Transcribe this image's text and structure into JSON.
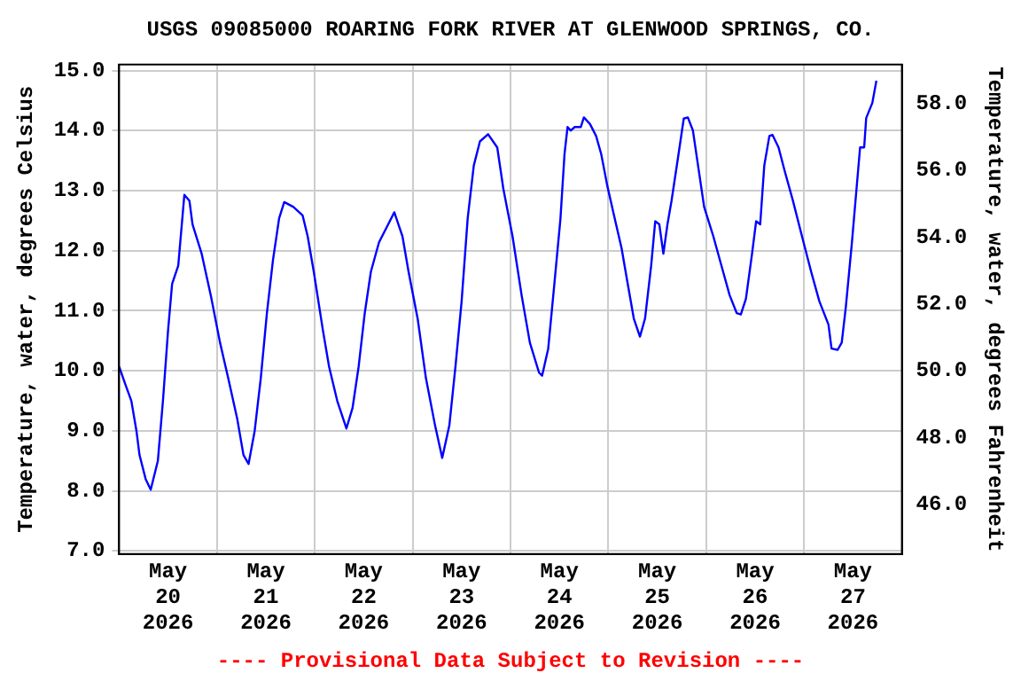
{
  "chart_data": {
    "type": "line",
    "title": "USGS 09085000 ROARING FORK RIVER AT GLENWOOD SPRINGS, CO.",
    "ylabel": "Temperature, water, degrees Celsius",
    "y2label": "Temperature, water, degrees Fahrenheit",
    "annotations": [
      "---- Provisional Data Subject to Revision ----"
    ],
    "x": [
      "2026-05-20T00:00",
      "2026-05-20T01:30",
      "2026-05-20T03:00",
      "2026-05-20T04:15",
      "2026-05-20T05:00",
      "2026-05-20T06:30",
      "2026-05-20T07:45",
      "2026-05-20T09:30",
      "2026-05-20T10:45",
      "2026-05-20T12:00",
      "2026-05-20T13:00",
      "2026-05-20T14:30",
      "2026-05-20T16:00",
      "2026-05-20T17:15",
      "2026-05-20T18:00",
      "2026-05-20T20:15",
      "2026-05-20T22:30",
      "2026-05-21T00:45",
      "2026-05-21T02:45",
      "2026-05-21T05:00",
      "2026-05-21T06:30",
      "2026-05-21T07:45",
      "2026-05-21T09:15",
      "2026-05-21T10:45",
      "2026-05-21T12:15",
      "2026-05-21T13:45",
      "2026-05-21T15:15",
      "2026-05-21T16:30",
      "2026-05-21T18:45",
      "2026-05-21T21:00",
      "2026-05-21T22:15",
      "2026-05-21T23:45",
      "2026-05-22T02:00",
      "2026-05-22T03:30",
      "2026-05-22T05:30",
      "2026-05-22T07:45",
      "2026-05-22T09:15",
      "2026-05-22T10:45",
      "2026-05-22T12:15",
      "2026-05-22T13:45",
      "2026-05-22T15:45",
      "2026-05-22T18:00",
      "2026-05-22T19:30",
      "2026-05-22T21:30",
      "2026-05-22T23:00",
      "2026-05-23T01:15",
      "2026-05-23T03:15",
      "2026-05-23T05:30",
      "2026-05-23T07:15",
      "2026-05-23T09:00",
      "2026-05-23T10:30",
      "2026-05-23T12:00",
      "2026-05-23T13:30",
      "2026-05-23T15:00",
      "2026-05-23T16:30",
      "2026-05-23T18:30",
      "2026-05-23T20:45",
      "2026-05-23T22:15",
      "2026-05-24T00:30",
      "2026-05-24T02:45",
      "2026-05-24T04:45",
      "2026-05-24T07:00",
      "2026-05-24T07:45",
      "2026-05-24T09:15",
      "2026-05-24T10:45",
      "2026-05-24T12:15",
      "2026-05-24T13:15",
      "2026-05-24T14:00",
      "2026-05-24T14:45",
      "2026-05-24T15:45",
      "2026-05-24T17:15",
      "2026-05-24T18:00",
      "2026-05-24T19:30",
      "2026-05-24T21:00",
      "2026-05-24T22:15",
      "2026-05-24T23:45",
      "2026-05-25T01:15",
      "2026-05-25T03:15",
      "2026-05-25T04:45",
      "2026-05-25T06:15",
      "2026-05-25T07:45",
      "2026-05-25T09:00",
      "2026-05-25T10:30",
      "2026-05-25T11:30",
      "2026-05-25T12:30",
      "2026-05-25T13:30",
      "2026-05-25T14:30",
      "2026-05-25T15:30",
      "2026-05-25T17:00",
      "2026-05-25T18:30",
      "2026-05-25T19:30",
      "2026-05-25T20:45",
      "2026-05-25T22:00",
      "2026-05-25T23:30",
      "2026-05-26T01:45",
      "2026-05-26T03:45",
      "2026-05-26T05:45",
      "2026-05-26T07:30",
      "2026-05-26T08:30",
      "2026-05-26T09:45",
      "2026-05-26T11:15",
      "2026-05-26T12:15",
      "2026-05-26T13:15",
      "2026-05-26T14:15",
      "2026-05-26T15:30",
      "2026-05-26T16:15",
      "2026-05-26T17:45",
      "2026-05-26T19:15",
      "2026-05-26T21:15",
      "2026-05-26T23:30",
      "2026-05-27T01:45",
      "2026-05-27T03:45",
      "2026-05-27T06:00",
      "2026-05-27T06:45",
      "2026-05-27T08:15",
      "2026-05-27T09:15",
      "2026-05-27T10:15",
      "2026-05-27T11:45",
      "2026-05-27T13:00",
      "2026-05-27T13:45",
      "2026-05-27T14:45",
      "2026-05-27T15:15",
      "2026-05-27T16:45",
      "2026-05-27T17:45"
    ],
    "series": [
      {
        "color": "#0000ff",
        "values": [
          10.07,
          9.78,
          9.5,
          9.0,
          8.6,
          8.2,
          8.02,
          8.5,
          9.5,
          10.67,
          11.45,
          11.75,
          12.93,
          12.83,
          12.44,
          11.95,
          11.25,
          10.47,
          9.88,
          9.19,
          8.6,
          8.45,
          9.0,
          9.88,
          10.96,
          11.85,
          12.54,
          12.81,
          12.73,
          12.59,
          12.24,
          11.65,
          10.67,
          10.07,
          9.5,
          9.04,
          9.38,
          10.07,
          10.96,
          11.65,
          12.14,
          12.44,
          12.64,
          12.24,
          11.65,
          10.86,
          9.88,
          9.09,
          8.55,
          9.09,
          10.07,
          11.15,
          12.54,
          13.42,
          13.82,
          13.94,
          13.72,
          13.03,
          12.24,
          11.25,
          10.47,
          9.97,
          9.92,
          10.37,
          11.44,
          12.53,
          13.61,
          14.06,
          14.0,
          14.06,
          14.06,
          14.22,
          14.11,
          13.91,
          13.61,
          13.08,
          12.63,
          12.04,
          11.45,
          10.87,
          10.57,
          10.87,
          11.75,
          12.49,
          12.44,
          11.95,
          12.44,
          12.83,
          13.51,
          14.2,
          14.22,
          14.0,
          13.42,
          12.73,
          12.24,
          11.75,
          11.26,
          10.96,
          10.94,
          11.2,
          11.95,
          12.49,
          12.44,
          13.42,
          13.91,
          13.93,
          13.72,
          13.33,
          12.84,
          12.24,
          11.65,
          11.16,
          10.77,
          10.37,
          10.35,
          10.47,
          11.06,
          12.14,
          13.13,
          13.72,
          13.72,
          14.21,
          14.46,
          14.83
        ]
      }
    ],
    "xlim": [
      "2026-05-20T00:00",
      "2026-05-28T00:00"
    ],
    "xticks": [
      {
        "value": "2026-05-20T12:00",
        "label": "May 20 2026"
      },
      {
        "value": "2026-05-21T00:00",
        "label": null
      },
      {
        "value": "2026-05-21T12:00",
        "label": "May 21 2026"
      },
      {
        "value": "2026-05-22T00:00",
        "label": null
      },
      {
        "value": "2026-05-22T12:00",
        "label": "May 22 2026"
      },
      {
        "value": "2026-05-23T00:00",
        "label": null
      },
      {
        "value": "2026-05-23T12:00",
        "label": "May 23 2026"
      },
      {
        "value": "2026-05-24T00:00",
        "label": null
      },
      {
        "value": "2026-05-24T12:00",
        "label": "May 24 2026"
      },
      {
        "value": "2026-05-25T00:00",
        "label": null
      },
      {
        "value": "2026-05-25T12:00",
        "label": "May 25 2026"
      },
      {
        "value": "2026-05-26T00:00",
        "label": null
      },
      {
        "value": "2026-05-26T12:00",
        "label": "May 26 2026"
      },
      {
        "value": "2026-05-27T00:00",
        "label": null
      },
      {
        "value": "2026-05-27T12:00",
        "label": "May 27 2026"
      }
    ],
    "ylim": [
      6.95,
      15.1
    ],
    "yticks": [
      {
        "value": 7,
        "label": "7.0"
      },
      {
        "value": 8,
        "label": "8.0"
      },
      {
        "value": 9,
        "label": "9.0"
      },
      {
        "value": 10,
        "label": "10.0"
      },
      {
        "value": 11,
        "label": "11.0"
      },
      {
        "value": 12,
        "label": "12.0"
      },
      {
        "value": 13,
        "label": "13.0"
      },
      {
        "value": 14,
        "label": "14.0"
      },
      {
        "value": 15,
        "label": "15.0"
      }
    ],
    "y2lim": [
      44.51,
      59.18
    ],
    "y2ticks": [
      {
        "value": 46,
        "label": "46.0"
      },
      {
        "value": 48,
        "label": "48.0"
      },
      {
        "value": 50,
        "label": "50.0"
      },
      {
        "value": 52,
        "label": "52.0"
      },
      {
        "value": 54,
        "label": "54.0"
      },
      {
        "value": 56,
        "label": "56.0"
      },
      {
        "value": 58,
        "label": "58.0"
      }
    ],
    "grid": true,
    "legend": false,
    "marker": "none",
    "line_style": "solid"
  }
}
